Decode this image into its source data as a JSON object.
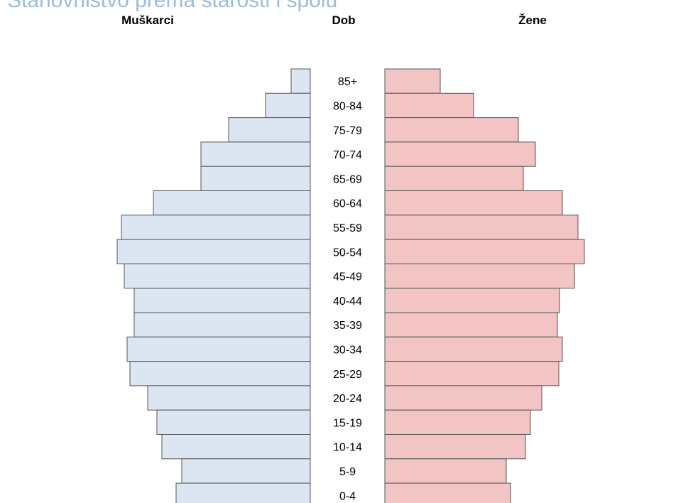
{
  "chart_data": {
    "type": "pyramid",
    "title": "Stanovništvo prema starosti i spolu",
    "axis_label": "Dob",
    "categories": [
      "85+",
      "80-84",
      "75-79",
      "70-74",
      "65-69",
      "60-64",
      "55-59",
      "50-54",
      "45-49",
      "40-44",
      "35-39",
      "30-34",
      "25-29",
      "20-24",
      "15-19",
      "10-14",
      "5-9",
      "0-4"
    ],
    "xlim": [
      0,
      300
    ],
    "series": [
      {
        "name": "Muškarci",
        "color": "#dce6f2",
        "values": [
          27,
          63,
          115,
          154,
          154,
          221,
          266,
          272,
          262,
          248,
          248,
          258,
          254,
          229,
          216,
          209,
          181,
          189
        ]
      },
      {
        "name": "Žene",
        "color": "#f2c4c4",
        "values": [
          78,
          125,
          188,
          212,
          195,
          250,
          272,
          281,
          267,
          246,
          243,
          250,
          245,
          221,
          205,
          198,
          171,
          177
        ]
      }
    ]
  }
}
